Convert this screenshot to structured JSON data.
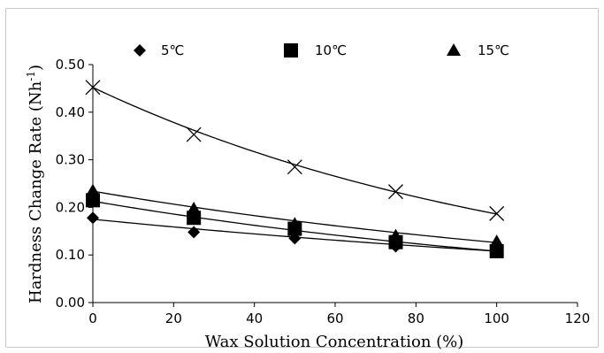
{
  "chart_data": {
    "type": "scatter",
    "title": "",
    "xlabel": "Wax Solution Concentration (%)",
    "ylabel_main": "Hardness Change Rate (Nh",
    "ylabel_sup": "-1",
    "ylabel_end": ")",
    "xlim": [
      0,
      120
    ],
    "ylim": [
      0,
      0.5
    ],
    "x_ticks": [
      "0",
      "20",
      "40",
      "60",
      "80",
      "100",
      "120"
    ],
    "y_ticks": [
      "0.00",
      "0.10",
      "0.20",
      "0.30",
      "0.40",
      "0.50"
    ],
    "grid": false,
    "legend_position": "top",
    "series": [
      {
        "name": "5℃",
        "marker": "diamond",
        "x": [
          0,
          25,
          50,
          75,
          100
        ],
        "y": [
          0.178,
          0.148,
          0.135,
          0.118,
          0.108
        ],
        "trend": [
          0.175,
          0.108
        ]
      },
      {
        "name": "10℃",
        "marker": "square",
        "x": [
          0,
          25,
          50,
          75,
          100
        ],
        "y": [
          0.215,
          0.178,
          0.155,
          0.127,
          0.108
        ],
        "trend": [
          0.213,
          0.108
        ]
      },
      {
        "name": "15℃",
        "marker": "triangle",
        "x": [
          0,
          25,
          50,
          75,
          100
        ],
        "y": [
          0.235,
          0.197,
          0.165,
          0.14,
          0.128
        ],
        "trend": [
          0.234,
          0.126
        ]
      },
      {
        "marker": "cross",
        "x": [
          0,
          25,
          50,
          75,
          100
        ],
        "y": [
          0.452,
          0.353,
          0.285,
          0.233,
          0.187
        ],
        "trend": [
          0.452,
          0.186
        ]
      }
    ]
  }
}
